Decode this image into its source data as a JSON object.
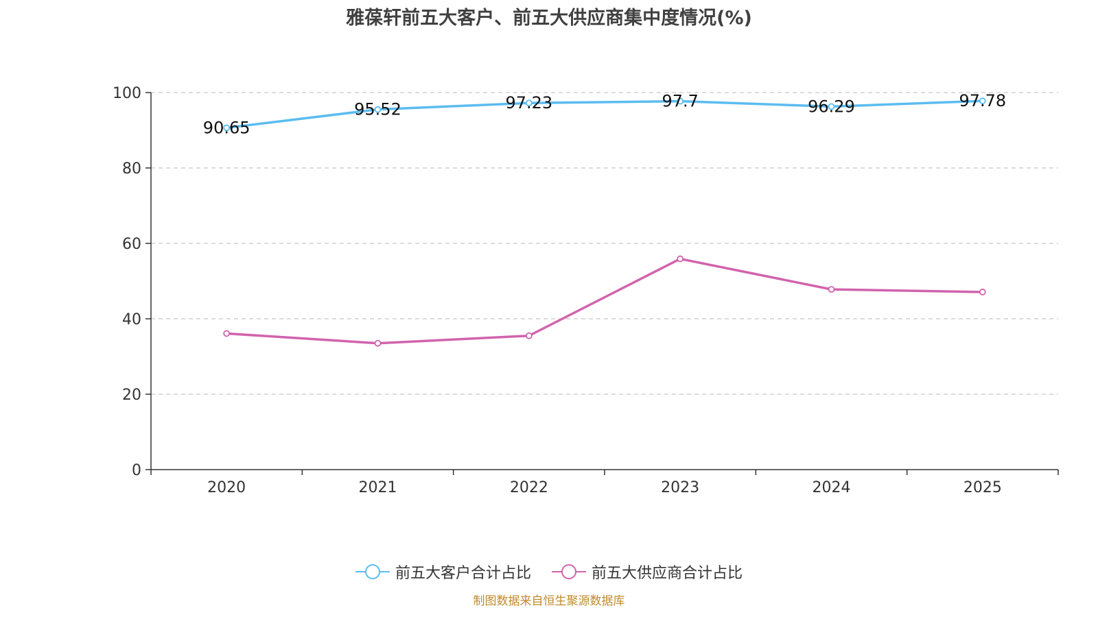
{
  "chart_data": {
    "type": "line",
    "title": "雅葆轩前五大客户、前五大供应商集中度情况(%)",
    "categories": [
      "2020",
      "2021",
      "2022",
      "2023",
      "2024",
      "2025"
    ],
    "series": [
      {
        "name": "前五大客户合计占比",
        "values": [
          90.65,
          95.52,
          97.23,
          97.7,
          96.29,
          97.78
        ],
        "color": "#5bbcf0",
        "show_labels": true,
        "labels": [
          "90.65",
          "95.52",
          "97.23",
          "97.7",
          "96.29",
          "97.78"
        ]
      },
      {
        "name": "前五大供应商合计占比",
        "values": [
          36.1,
          33.5,
          35.5,
          55.9,
          47.8,
          47.1
        ],
        "color": "#d163ad",
        "show_labels": false
      }
    ],
    "ylim": [
      0,
      100
    ],
    "yticks": [
      "0",
      "20",
      "40",
      "60",
      "80",
      "100"
    ],
    "xlabel": "",
    "ylabel": "",
    "grid": true,
    "legend_position": "bottom"
  },
  "source": "制图数据来自恒生聚源数据库"
}
